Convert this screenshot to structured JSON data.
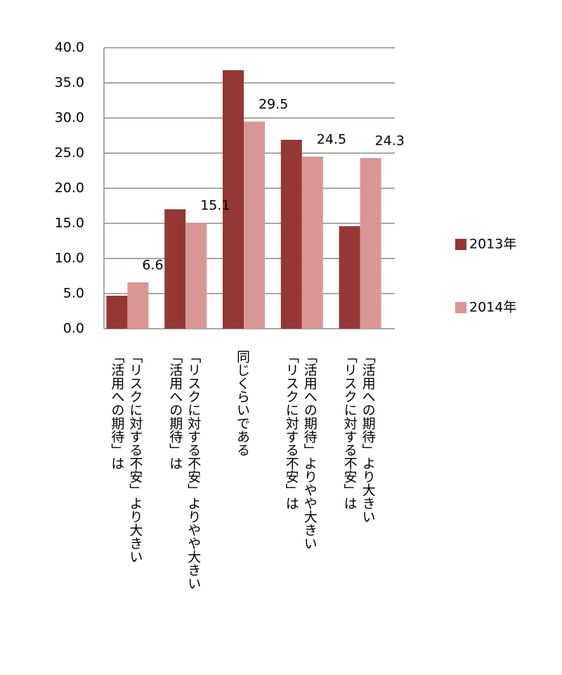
{
  "chart_data": {
    "type": "bar",
    "categories": [
      [
        "「活用への期待」は",
        "「リスクに対する不安」より大きい"
      ],
      [
        "「活用への期待」は",
        "「リスクに対する不安」よりやや大きい"
      ],
      [
        "同じくらいである"
      ],
      [
        "「リスクに対する不安」は",
        "「活用への期待」よりやや大きい"
      ],
      [
        "「リスクに対する不安」は",
        "「活用への期待」より大きい"
      ]
    ],
    "series": [
      {
        "name": "2013年",
        "color": "#953735",
        "values": [
          4.7,
          17.0,
          36.8,
          26.9,
          14.6
        ]
      },
      {
        "name": "2014年",
        "color": "#d99694",
        "values": [
          6.6,
          15.1,
          29.5,
          24.5,
          24.3
        ],
        "data_labels": true
      }
    ],
    "ylim": [
      0,
      40
    ],
    "yticks": [
      {
        "value": 0,
        "label": "0.0"
      },
      {
        "value": 5,
        "label": "5.0"
      },
      {
        "value": 10,
        "label": "10.0"
      },
      {
        "value": 15,
        "label": "15.0"
      },
      {
        "value": 20,
        "label": "20.0"
      },
      {
        "value": 25,
        "label": "25.0"
      },
      {
        "value": 30,
        "label": "30.0"
      },
      {
        "value": 35,
        "label": "35.0"
      },
      {
        "value": 40,
        "label": "40.0"
      }
    ],
    "grid": true,
    "legend": "right"
  }
}
